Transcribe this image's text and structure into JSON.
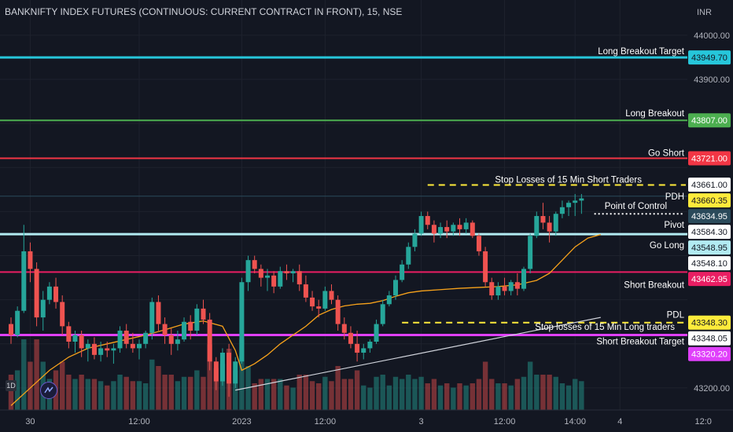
{
  "header": {
    "title": "BANKNIFTY INDEX FUTURES (CONTINUOUS: CURRENT CONTRACT IN FRONT), 15, NSE",
    "currency": "INR"
  },
  "chart_data": {
    "type": "candlestick",
    "symbol": "BANKNIFTY1!",
    "interval": "15",
    "exchange": "NSE",
    "y_range": [
      43150,
      44080
    ],
    "y_ticks": [
      44000,
      43900,
      43200
    ],
    "x_ticks": [
      {
        "label": "30",
        "bar": 3
      },
      {
        "label": "12:00",
        "bar": 20
      },
      {
        "label": "2023",
        "bar": 36
      },
      {
        "label": "12:00",
        "bar": 49
      },
      {
        "label": "3",
        "bar": 64
      },
      {
        "label": "12:00",
        "bar": 77
      },
      {
        "label": "14:00",
        "bar": 88
      },
      {
        "label": "4",
        "bar": 95
      },
      {
        "label": "12:0",
        "bar": 108
      }
    ],
    "total_slots": 113,
    "candles": [
      [
        43345,
        43360,
        43300,
        43320
      ],
      [
        43320,
        43385,
        43315,
        43375
      ],
      [
        43375,
        43570,
        43370,
        43510
      ],
      [
        43510,
        43530,
        43440,
        43470
      ],
      [
        43470,
        43485,
        43340,
        43360
      ],
      [
        43360,
        43420,
        43330,
        43400
      ],
      [
        43400,
        43440,
        43390,
        43430
      ],
      [
        43430,
        43450,
        43380,
        43395
      ],
      [
        43395,
        43410,
        43320,
        43340
      ],
      [
        43340,
        43350,
        43290,
        43305
      ],
      [
        43305,
        43330,
        43280,
        43320
      ],
      [
        43320,
        43330,
        43270,
        43290
      ],
      [
        43290,
        43310,
        43260,
        43300
      ],
      [
        43300,
        43315,
        43265,
        43275
      ],
      [
        43275,
        43305,
        43260,
        43290
      ],
      [
        43290,
        43305,
        43270,
        43285
      ],
      [
        43285,
        43300,
        43255,
        43290
      ],
      [
        43290,
        43340,
        43280,
        43330
      ],
      [
        43330,
        43345,
        43290,
        43300
      ],
      [
        43300,
        43325,
        43280,
        43290
      ],
      [
        43290,
        43310,
        43265,
        43300
      ],
      [
        43300,
        43330,
        43290,
        43325
      ],
      [
        43325,
        43405,
        43310,
        43395
      ],
      [
        43395,
        43410,
        43330,
        43345
      ],
      [
        43345,
        43360,
        43300,
        43320
      ],
      [
        43320,
        43335,
        43275,
        43300
      ],
      [
        43300,
        43330,
        43285,
        43310
      ],
      [
        43310,
        43360,
        43305,
        43350
      ],
      [
        43350,
        43365,
        43310,
        43330
      ],
      [
        43330,
        43390,
        43320,
        43380
      ],
      [
        43380,
        43400,
        43345,
        43355
      ],
      [
        43355,
        43370,
        43240,
        43260
      ],
      [
        43260,
        43270,
        43195,
        43215
      ],
      [
        43215,
        43290,
        43205,
        43280
      ],
      [
        43280,
        43300,
        43180,
        43210
      ],
      [
        43210,
        43270,
        43200,
        43260
      ],
      [
        43260,
        43450,
        43255,
        43440
      ],
      [
        43440,
        43500,
        43420,
        43490
      ],
      [
        43490,
        43500,
        43460,
        43470
      ],
      [
        43470,
        43480,
        43430,
        43450
      ],
      [
        43450,
        43470,
        43420,
        43455
      ],
      [
        43455,
        43465,
        43415,
        43430
      ],
      [
        43430,
        43475,
        43425,
        43465
      ],
      [
        43465,
        43480,
        43445,
        43460
      ],
      [
        43460,
        43470,
        43440,
        43465
      ],
      [
        43465,
        43480,
        43420,
        43435
      ],
      [
        43435,
        43455,
        43395,
        43405
      ],
      [
        43405,
        43420,
        43375,
        43385
      ],
      [
        43385,
        43400,
        43360,
        43380
      ],
      [
        43380,
        43430,
        43375,
        43420
      ],
      [
        43420,
        43435,
        43390,
        43400
      ],
      [
        43400,
        43410,
        43330,
        43345
      ],
      [
        43345,
        43360,
        43310,
        43325
      ],
      [
        43325,
        43340,
        43290,
        43300
      ],
      [
        43300,
        43330,
        43260,
        43280
      ],
      [
        43280,
        43300,
        43265,
        43290
      ],
      [
        43290,
        43310,
        43280,
        43305
      ],
      [
        43305,
        43355,
        43300,
        43345
      ],
      [
        43345,
        43400,
        43340,
        43390
      ],
      [
        43390,
        43420,
        43385,
        43410
      ],
      [
        43410,
        43455,
        43400,
        43445
      ],
      [
        43445,
        43490,
        43440,
        43480
      ],
      [
        43480,
        43530,
        43470,
        43520
      ],
      [
        43520,
        43560,
        43510,
        43550
      ],
      [
        43550,
        43600,
        43545,
        43590
      ],
      [
        43590,
        43600,
        43560,
        43570
      ],
      [
        43570,
        43580,
        43530,
        43550
      ],
      [
        43550,
        43575,
        43540,
        43565
      ],
      [
        43565,
        43580,
        43540,
        43555
      ],
      [
        43555,
        43575,
        43545,
        43570
      ],
      [
        43570,
        43585,
        43545,
        43560
      ],
      [
        43560,
        43585,
        43550,
        43575
      ],
      [
        43575,
        43580,
        43540,
        43545
      ],
      [
        43545,
        43550,
        43500,
        43510
      ],
      [
        43510,
        43520,
        43430,
        43440
      ],
      [
        43440,
        43450,
        43400,
        43410
      ],
      [
        43410,
        43440,
        43400,
        43430
      ],
      [
        43430,
        43450,
        43410,
        43420
      ],
      [
        43420,
        43445,
        43410,
        43440
      ],
      [
        43440,
        43460,
        43410,
        43425
      ],
      [
        43425,
        43475,
        43420,
        43470
      ],
      [
        43470,
        43550,
        43460,
        43545
      ],
      [
        43545,
        43600,
        43540,
        43590
      ],
      [
        43590,
        43620,
        43560,
        43575
      ],
      [
        43575,
        43590,
        43530,
        43555
      ],
      [
        43555,
        43600,
        43545,
        43595
      ],
      [
        43595,
        43625,
        43585,
        43610
      ],
      [
        43610,
        43625,
        43590,
        43620
      ],
      [
        43620,
        43640,
        43590,
        43625
      ],
      [
        43625,
        43640,
        43595,
        43630
      ]
    ],
    "vwap": [
      [
        0,
        43160
      ],
      [
        3,
        43200
      ],
      [
        6,
        43240
      ],
      [
        9,
        43270
      ],
      [
        12,
        43290
      ],
      [
        15,
        43300
      ],
      [
        18,
        43310
      ],
      [
        21,
        43320
      ],
      [
        24,
        43332
      ],
      [
        27,
        43345
      ],
      [
        30,
        43352
      ],
      [
        33,
        43340
      ],
      [
        35,
        43285
      ],
      [
        36,
        43240
      ],
      [
        38,
        43255
      ],
      [
        40,
        43275
      ],
      [
        42,
        43300
      ],
      [
        44,
        43320
      ],
      [
        46,
        43340
      ],
      [
        48,
        43365
      ],
      [
        50,
        43378
      ],
      [
        52,
        43386
      ],
      [
        54,
        43390
      ],
      [
        56,
        43392
      ],
      [
        58,
        43398
      ],
      [
        60,
        43408
      ],
      [
        62,
        43416
      ],
      [
        64,
        43420
      ],
      [
        67,
        43423
      ],
      [
        70,
        43426
      ],
      [
        73,
        43428
      ],
      [
        76,
        43430
      ],
      [
        79,
        43434
      ],
      [
        82,
        43444
      ],
      [
        84,
        43460
      ],
      [
        86,
        43490
      ],
      [
        88,
        43520
      ],
      [
        90,
        43540
      ],
      [
        92,
        43548
      ]
    ],
    "trendlines": [
      {
        "from": [
          35,
          43195
        ],
        "to": [
          92,
          43360
        ],
        "color": "#d1d4dc"
      }
    ],
    "levels": [
      {
        "name": "Long Breakout Target",
        "price": 43949.7,
        "price_label": "43949.70",
        "label": "Long Breakout Target",
        "color": "#26c6da",
        "badge_text": "#131722",
        "style": "solid",
        "width": 3
      },
      {
        "name": "Long Breakout",
        "price": 43807.0,
        "price_label": "43807.00",
        "label": "Long Breakout",
        "color": "#4caf50",
        "badge_text": "#ffffff",
        "style": "solid",
        "width": 2
      },
      {
        "name": "Go Short",
        "price": 43721.0,
        "price_label": "43721.00",
        "label": "Go Short",
        "color": "#f23645",
        "badge_text": "#ffffff",
        "style": "solid",
        "width": 2
      },
      {
        "name": "43661",
        "price": 43661.0,
        "price_label": "43661.00",
        "label": "",
        "color": "#ffffff",
        "badge_text": "#131722",
        "style": "none",
        "width": 0
      },
      {
        "name": "Stop Losses of 15 Min Short Traders",
        "price": 43660.35,
        "price_label": "43660.35",
        "label": "Stop Losses of 15 Min Short Traders",
        "color": "#ffeb3b",
        "badge_text": "#131722",
        "style": "dashed-partial",
        "width": 2
      },
      {
        "name": "PDH",
        "price": 43634.95,
        "price_label": "43634.95",
        "label": "PDH",
        "color": "#2a4a5a",
        "badge_text": "#ffffff",
        "style": "solid",
        "width": 1
      },
      {
        "name": "Point of Control",
        "price": 43595,
        "price_label": "",
        "label": "Point of Control",
        "color": "#ffffff",
        "badge_text": "#131722",
        "style": "dotted-partial",
        "width": 2
      },
      {
        "name": "Pivot",
        "price": 43584.3,
        "price_label": "43584.30",
        "label": "Pivot",
        "color": "#ffffff",
        "badge_text": "#131722",
        "style": "none",
        "width": 0
      },
      {
        "name": "Go Long",
        "price": 43548.95,
        "price_label": "43548.95",
        "label": "Go Long",
        "color": "#b2ebf2",
        "badge_text": "#131722",
        "style": "solid",
        "width": 3
      },
      {
        "name": "43548.10",
        "price": 43548.1,
        "price_label": "43548.10",
        "label": "",
        "color": "#ffffff",
        "badge_text": "#131722",
        "style": "none",
        "width": 0
      },
      {
        "name": "Short Breakout",
        "price": 43462.95,
        "price_label": "43462.95",
        "label": "Short Breakout",
        "color": "#e91e63",
        "badge_text": "#ffffff",
        "style": "solid",
        "width": 2
      },
      {
        "name": "PDL",
        "price": 43348.3,
        "price_label": "43348.30",
        "label": "PDL",
        "color": "#ffeb3b",
        "badge_text": "#131722",
        "style": "dashed-partial",
        "width": 2
      },
      {
        "name": "Stop losses of 15 Min Long traders",
        "price": 43348.05,
        "price_label": "43348.05",
        "label": "Stop losses of  15 Min Long traders",
        "color": "#ffffff",
        "badge_text": "#131722",
        "style": "none",
        "width": 0
      },
      {
        "name": "Short Breakout Target",
        "price": 43320.2,
        "price_label": "43320.20",
        "label": "Short Breakout Target",
        "color": "#e040fb",
        "badge_text": "#ffffff",
        "style": "solid",
        "width": 3
      }
    ],
    "colors": {
      "up": "#26a69a",
      "down": "#ef5350",
      "vwap": "#f7a21b",
      "grid": "#1e222d",
      "axis_text": "#b2b5be"
    }
  }
}
